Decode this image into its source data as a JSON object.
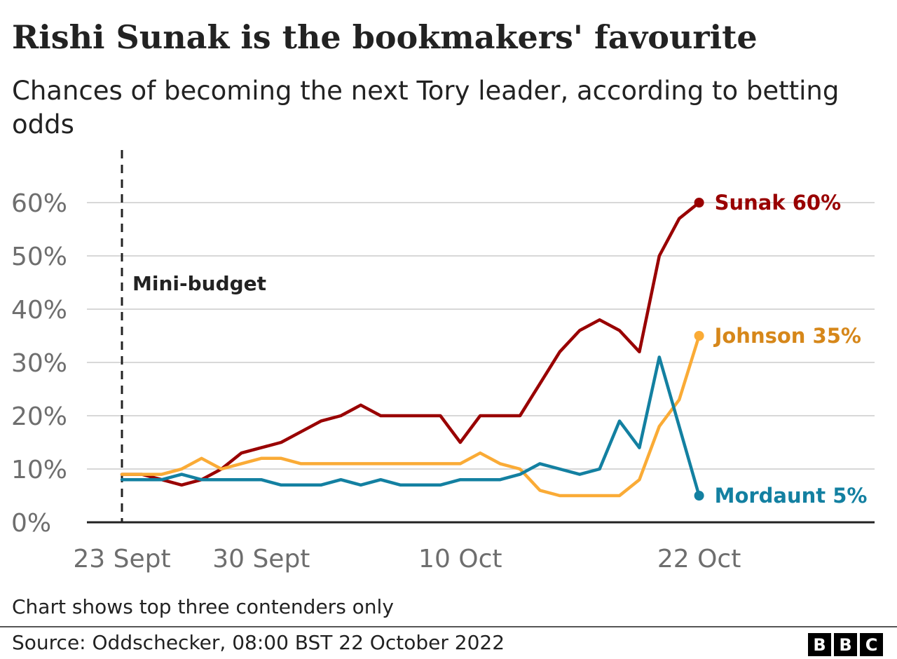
{
  "title": "Rishi Sunak is the bookmakers' favourite",
  "subtitle": "Chances of becoming the next Tory leader, according to betting odds",
  "note": "Chart shows top three contenders only",
  "source": "Source: Oddschecker, 08:00 BST 22 October 2022",
  "logo": [
    "B",
    "B",
    "C"
  ],
  "chart_data": {
    "type": "line",
    "x_start_day": "23 Sept 2022",
    "x_end_day": "22 Oct 2022",
    "xticks": [
      {
        "label": "23 Sept",
        "x": 0
      },
      {
        "label": "30 Sept",
        "x": 7
      },
      {
        "label": "10 Oct",
        "x": 17
      },
      {
        "label": "22 Oct",
        "x": 29
      }
    ],
    "ylim": [
      0,
      60
    ],
    "yticks": [
      {
        "label": "0%",
        "y": 0
      },
      {
        "label": "10%",
        "y": 10
      },
      {
        "label": "20%",
        "y": 20
      },
      {
        "label": "30%",
        "y": 30
      },
      {
        "label": "40%",
        "y": 40
      },
      {
        "label": "50%",
        "y": 50
      },
      {
        "label": "60%",
        "y": 60
      }
    ],
    "grid": true,
    "annotation": {
      "label": "Mini-budget",
      "x": 0
    },
    "x": [
      0,
      1,
      2,
      3,
      4,
      5,
      6,
      7,
      8,
      9,
      10,
      11,
      12,
      13,
      14,
      15,
      16,
      17,
      18,
      19,
      20,
      21,
      22,
      23,
      24,
      25,
      26,
      27,
      28,
      29
    ],
    "series": [
      {
        "name": "Sunak",
        "label": "Sunak 60%",
        "color": "#990000",
        "values": [
          9,
          9,
          8,
          7,
          8,
          10,
          13,
          14,
          15,
          17,
          19,
          20,
          22,
          20,
          20,
          20,
          20,
          15,
          20,
          20,
          20,
          26,
          32,
          36,
          38,
          36,
          32,
          50,
          57,
          60
        ]
      },
      {
        "name": "Johnson",
        "label": "Johnson 35%",
        "color": "#FAAB36",
        "label_color": "#D6871A",
        "values": [
          9,
          9,
          9,
          10,
          12,
          10,
          11,
          12,
          12,
          11,
          11,
          11,
          11,
          11,
          11,
          11,
          11,
          11,
          13,
          11,
          10,
          6,
          5,
          5,
          5,
          5,
          8,
          18,
          23,
          35
        ]
      },
      {
        "name": "Mordaunt",
        "label": "Mordaunt 5%",
        "color": "#1380A1",
        "values": [
          8,
          8,
          8,
          9,
          8,
          8,
          8,
          8,
          7,
          7,
          7,
          8,
          7,
          8,
          7,
          7,
          7,
          8,
          8,
          8,
          9,
          11,
          10,
          9,
          10,
          19,
          14,
          31,
          18,
          5
        ]
      }
    ]
  }
}
